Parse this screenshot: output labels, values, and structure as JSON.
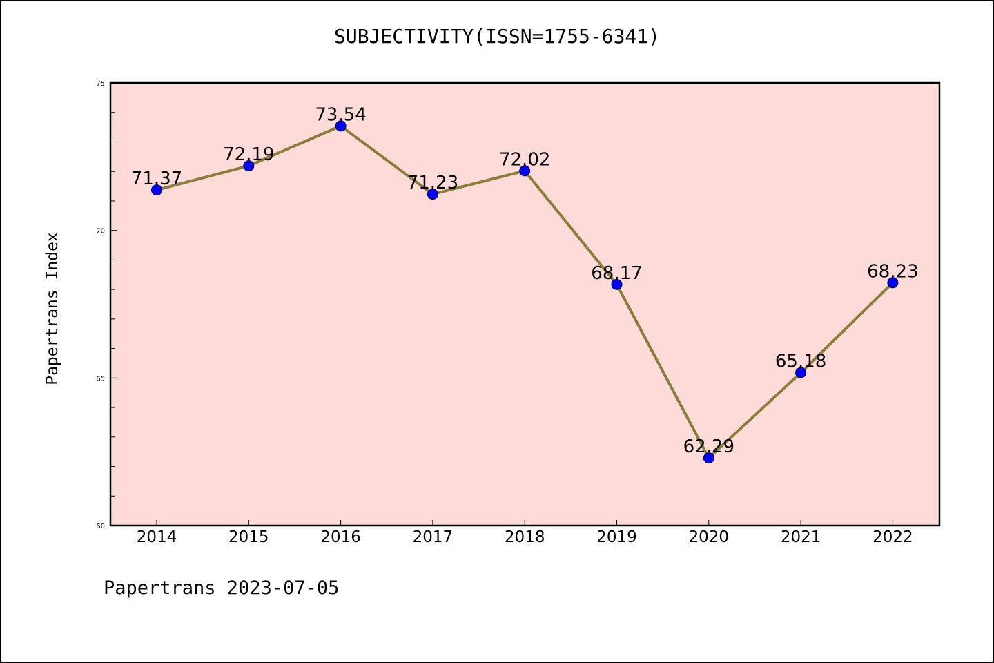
{
  "chart_data": {
    "type": "line",
    "title": "SUBJECTIVITY(ISSN=1755-6341)",
    "ylabel": "Papertrans Index",
    "xlabel": "",
    "categories": [
      "2014",
      "2015",
      "2016",
      "2017",
      "2018",
      "2019",
      "2020",
      "2021",
      "2022"
    ],
    "values": [
      71.37,
      72.19,
      73.54,
      71.23,
      72.02,
      68.17,
      62.29,
      65.18,
      68.23
    ],
    "data_labels": [
      "71.37",
      "72.19",
      "73.54",
      "71.23",
      "72.02",
      "68.17",
      "62.29",
      "65.18",
      "68.23"
    ],
    "yticks": [
      "60",
      "65",
      "70",
      "75"
    ],
    "ylim": [
      60,
      75
    ],
    "grid": false,
    "plot_background": "#fddbd8",
    "line_color": "#8b7d3a",
    "marker_color": "#0000ff"
  },
  "footer": "Papertrans 2023-07-05"
}
